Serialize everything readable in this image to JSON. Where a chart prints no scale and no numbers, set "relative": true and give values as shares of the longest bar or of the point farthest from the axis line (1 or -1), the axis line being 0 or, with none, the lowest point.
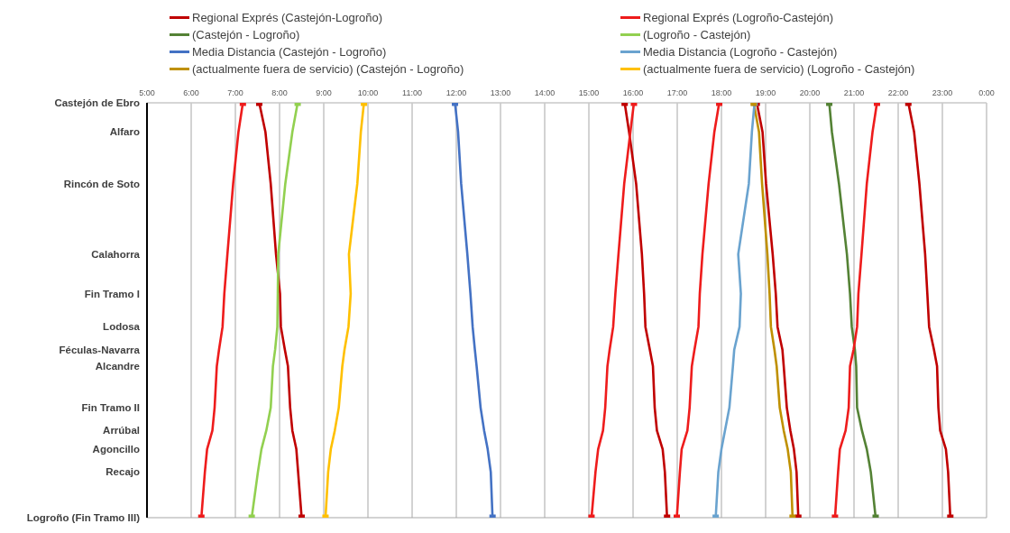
{
  "chart_data": {
    "type": "line",
    "relative": true,
    "xlim": [
      5,
      24
    ],
    "xticks": [
      {
        "value": 5,
        "label": "5:00"
      },
      {
        "value": 6,
        "label": "6:00"
      },
      {
        "value": 7,
        "label": "7:00"
      },
      {
        "value": 8,
        "label": "8:00"
      },
      {
        "value": 9,
        "label": "9:00"
      },
      {
        "value": 10,
        "label": "10:00"
      },
      {
        "value": 11,
        "label": "11:00"
      },
      {
        "value": 12,
        "label": "12:00"
      },
      {
        "value": 13,
        "label": "13:00"
      },
      {
        "value": 14,
        "label": "14:00"
      },
      {
        "value": 15,
        "label": "15:00"
      },
      {
        "value": 16,
        "label": "16:00"
      },
      {
        "value": 17,
        "label": "17:00"
      },
      {
        "value": 18,
        "label": "18:00"
      },
      {
        "value": 19,
        "label": "19:00"
      },
      {
        "value": 20,
        "label": "20:00"
      },
      {
        "value": 21,
        "label": "21:00"
      },
      {
        "value": 22,
        "label": "22:00"
      },
      {
        "value": 23,
        "label": "23:00"
      },
      {
        "value": 24,
        "label": "0:00"
      }
    ],
    "annotations": [
      "Castejón de Ebro",
      "Alfaro",
      "Rincón de Soto",
      "Calahorra",
      "Fin Tramo I",
      "Lodosa",
      "Féculas-Navarra",
      "Alcandre",
      "Fin Tramo II",
      "Arrúbal",
      "Agoncillo",
      "Recajo",
      "Logroño (Fin Tramo III)"
    ],
    "grid": true,
    "legend": "top",
    "line_style": "solid",
    "series": [
      {
        "name": "Regional Exprés (Castejón-Logroño)",
        "color": "#c00000",
        "x": [
          7.54,
          7.68,
          7.8,
          7.92,
          8.01,
          8.03,
          8.12,
          8.19,
          8.24,
          8.29,
          8.38,
          8.42,
          8.5
        ],
        "values": [
          0,
          -0.07,
          -0.195,
          -0.365,
          -0.46,
          -0.54,
          -0.595,
          -0.635,
          -0.735,
          -0.79,
          -0.835,
          -0.89,
          -1
        ]
      },
      {
        "name": "(Castejón - Logroño)",
        "color": "#548235",
        "x": [
          20.44,
          20.5,
          20.66,
          20.84,
          20.91,
          20.95,
          21.02,
          21.05,
          21.07,
          21.18,
          21.29,
          21.38,
          21.49
        ],
        "values": [
          0,
          -0.07,
          -0.195,
          -0.365,
          -0.46,
          -0.54,
          -0.595,
          -0.635,
          -0.735,
          -0.79,
          -0.835,
          -0.89,
          -1
        ]
      },
      {
        "name": "Media Distancia (Castejón - Logroño)",
        "color": "#4472c4",
        "x": [
          11.97,
          12.04,
          12.11,
          12.25,
          12.32,
          12.37,
          12.42,
          12.46,
          12.55,
          12.63,
          12.71,
          12.78,
          12.82
        ],
        "values": [
          0,
          -0.07,
          -0.195,
          -0.365,
          -0.46,
          -0.54,
          -0.595,
          -0.635,
          -0.735,
          -0.79,
          -0.835,
          -0.89,
          -1
        ]
      },
      {
        "name": "(actualmente fuera de servicio) (Castejón - Logroño)",
        "color": "#bf9000",
        "x": [
          18.73,
          18.85,
          18.92,
          19.04,
          19.09,
          19.12,
          19.2,
          19.25,
          19.32,
          19.41,
          19.5,
          19.57,
          19.61
        ],
        "values": [
          0,
          -0.07,
          -0.195,
          -0.365,
          -0.46,
          -0.54,
          -0.595,
          -0.635,
          -0.735,
          -0.79,
          -0.835,
          -0.89,
          -1
        ]
      },
      {
        "name": "Regional Exprés (Logroño-Castejón)",
        "color": "#ee1c1c",
        "x": [
          7.17,
          7.07,
          6.95,
          6.82,
          6.75,
          6.71,
          6.63,
          6.58,
          6.53,
          6.48,
          6.36,
          6.31,
          6.23
        ],
        "values": [
          0,
          -0.07,
          -0.195,
          -0.365,
          -0.46,
          -0.54,
          -0.595,
          -0.635,
          -0.735,
          -0.79,
          -0.835,
          -0.89,
          -1
        ]
      },
      {
        "name": "(Logroño - Castejón)",
        "color": "#92d050",
        "x": [
          8.41,
          8.29,
          8.13,
          7.97,
          7.96,
          7.95,
          7.9,
          7.85,
          7.8,
          7.7,
          7.59,
          7.51,
          7.37
        ],
        "values": [
          0,
          -0.07,
          -0.195,
          -0.365,
          -0.46,
          -0.54,
          -0.595,
          -0.635,
          -0.735,
          -0.79,
          -0.835,
          -0.89,
          -1
        ]
      },
      {
        "name": "Media Distancia (Logroño - Castejón)",
        "color": "#6aa3cf",
        "x": [
          18.75,
          18.69,
          18.62,
          18.38,
          18.44,
          18.41,
          18.29,
          18.26,
          18.18,
          18.08,
          18.0,
          17.93,
          17.87
        ],
        "values": [
          0,
          -0.07,
          -0.195,
          -0.365,
          -0.46,
          -0.54,
          -0.595,
          -0.635,
          -0.735,
          -0.79,
          -0.835,
          -0.89,
          -1
        ]
      },
      {
        "name": "(actualmente fuera de servicio) (Logroño - Castejón)",
        "color": "#ffc000",
        "x": [
          9.91,
          9.84,
          9.76,
          9.57,
          9.61,
          9.56,
          9.47,
          9.42,
          9.34,
          9.25,
          9.16,
          9.1,
          9.04
        ],
        "values": [
          0,
          -0.07,
          -0.195,
          -0.365,
          -0.46,
          -0.54,
          -0.595,
          -0.635,
          -0.735,
          -0.79,
          -0.835,
          -0.89,
          -1
        ]
      },
      {
        "color": "#c00000",
        "x": [
          15.81,
          15.91,
          16.07,
          16.2,
          16.25,
          16.28,
          16.38,
          16.45,
          16.49,
          16.54,
          16.67,
          16.72,
          16.77
        ],
        "values": [
          0,
          -0.07,
          -0.195,
          -0.365,
          -0.46,
          -0.54,
          -0.595,
          -0.635,
          -0.735,
          -0.79,
          -0.835,
          -0.89,
          -1
        ]
      },
      {
        "color": "#c00000",
        "x": [
          18.8,
          18.93,
          19.01,
          19.16,
          19.23,
          19.27,
          19.38,
          19.41,
          19.48,
          19.56,
          19.64,
          19.7,
          19.74
        ],
        "values": [
          0,
          -0.07,
          -0.195,
          -0.365,
          -0.46,
          -0.54,
          -0.595,
          -0.635,
          -0.735,
          -0.79,
          -0.835,
          -0.89,
          -1
        ]
      },
      {
        "color": "#c00000",
        "x": [
          22.23,
          22.36,
          22.48,
          22.61,
          22.66,
          22.7,
          22.81,
          22.88,
          22.91,
          22.95,
          23.08,
          23.13,
          23.18
        ],
        "values": [
          0,
          -0.07,
          -0.195,
          -0.365,
          -0.46,
          -0.54,
          -0.595,
          -0.635,
          -0.735,
          -0.79,
          -0.835,
          -0.89,
          -1
        ]
      },
      {
        "color": "#ee1c1c",
        "x": [
          16.02,
          15.94,
          15.8,
          15.67,
          15.6,
          15.55,
          15.47,
          15.42,
          15.37,
          15.32,
          15.21,
          15.15,
          15.06
        ],
        "values": [
          0,
          -0.07,
          -0.195,
          -0.365,
          -0.46,
          -0.54,
          -0.595,
          -0.635,
          -0.735,
          -0.79,
          -0.835,
          -0.89,
          -1
        ]
      },
      {
        "color": "#ee1c1c",
        "x": [
          17.95,
          17.84,
          17.71,
          17.57,
          17.51,
          17.48,
          17.39,
          17.33,
          17.28,
          17.23,
          17.1,
          17.06,
          16.99
        ],
        "values": [
          0,
          -0.07,
          -0.195,
          -0.365,
          -0.46,
          -0.54,
          -0.595,
          -0.635,
          -0.735,
          -0.79,
          -0.835,
          -0.89,
          -1
        ]
      },
      {
        "color": "#ee1c1c",
        "x": [
          21.52,
          21.42,
          21.29,
          21.17,
          21.1,
          21.07,
          20.99,
          20.91,
          20.88,
          20.81,
          20.68,
          20.64,
          20.57
        ],
        "values": [
          0,
          -0.07,
          -0.195,
          -0.365,
          -0.46,
          -0.54,
          -0.595,
          -0.635,
          -0.735,
          -0.79,
          -0.835,
          -0.89,
          -1
        ]
      },
      {
        "type": "scatter",
        "marker": "square",
        "color": "#c00000",
        "x": [
          7.54,
          8.5,
          15.81,
          16.77,
          18.8,
          19.74,
          22.23,
          23.18
        ],
        "values": [
          0,
          -1,
          0,
          -1,
          0,
          -1,
          0,
          -1
        ]
      },
      {
        "type": "scatter",
        "marker": "square",
        "color": "#ee1c1c",
        "x": [
          7.17,
          6.23,
          16.02,
          15.06,
          17.95,
          16.99,
          21.52,
          20.57
        ],
        "values": [
          0,
          -1,
          0,
          -1,
          0,
          -1,
          0,
          -1
        ]
      },
      {
        "type": "scatter",
        "marker": "square",
        "color": "#548235",
        "x": [
          20.44,
          21.49
        ],
        "values": [
          0,
          -1
        ]
      },
      {
        "type": "scatter",
        "marker": "square",
        "color": "#92d050",
        "x": [
          8.41,
          7.37
        ],
        "values": [
          0,
          -1
        ]
      },
      {
        "type": "scatter",
        "marker": "square",
        "color": "#4472c4",
        "x": [
          11.97,
          12.82
        ],
        "values": [
          0,
          -1
        ]
      },
      {
        "type": "scatter",
        "marker": "square",
        "color": "#6aa3cf",
        "x": [
          18.75,
          17.87
        ],
        "values": [
          0,
          -1
        ]
      },
      {
        "type": "scatter",
        "marker": "square",
        "color": "#bf9000",
        "x": [
          18.73,
          19.61
        ],
        "values": [
          0,
          -1
        ]
      },
      {
        "type": "scatter",
        "marker": "square",
        "color": "#ffc000",
        "x": [
          9.91,
          9.04
        ],
        "values": [
          0,
          -1
        ]
      }
    ]
  }
}
